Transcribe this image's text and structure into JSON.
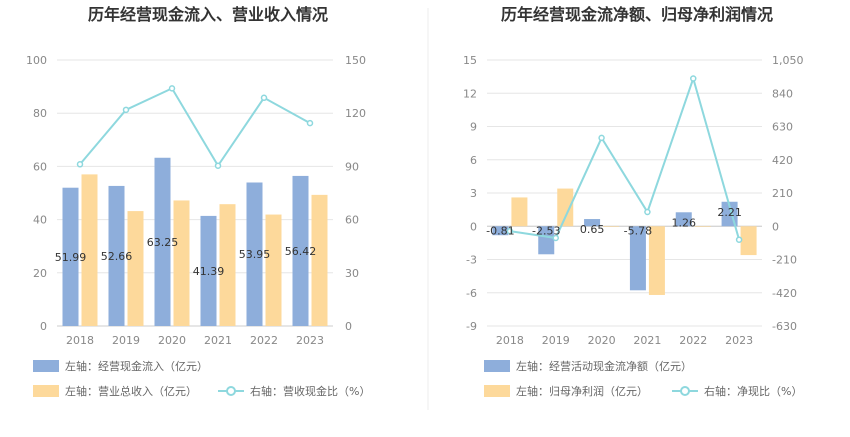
{
  "chart_data": [
    {
      "type": "bar",
      "title": "历年经营现金流入、营业收入情况",
      "categories": [
        "2018",
        "2019",
        "2020",
        "2021",
        "2022",
        "2023"
      ],
      "left_axis": {
        "min": 0,
        "max": 100,
        "ticks": [
          "0",
          "20",
          "40",
          "60",
          "80",
          "100"
        ]
      },
      "right_axis": {
        "min": 0,
        "max": 150,
        "ticks": [
          "0",
          "30",
          "60",
          "90",
          "120",
          "150"
        ]
      },
      "series": [
        {
          "name": "左轴：经营现金流入（亿元）",
          "type": "bar",
          "axis": "left",
          "color": "#8eaedb",
          "values": [
            51.99,
            52.66,
            63.25,
            41.39,
            53.95,
            56.42
          ],
          "labels": [
            "51.99",
            "52.66",
            "63.25",
            "41.39",
            "53.95",
            "56.42"
          ]
        },
        {
          "name": "左轴：营业总收入（亿元）",
          "type": "bar",
          "axis": "left",
          "color": "#fdd99b",
          "values": [
            57,
            43.2,
            47.2,
            45.8,
            41.9,
            49.3
          ]
        },
        {
          "name": "右轴：营收现金比（%）",
          "type": "line",
          "axis": "right",
          "color": "#8ed8de",
          "values": [
            91.2,
            121.9,
            134,
            90.4,
            128.7,
            114.4
          ]
        }
      ],
      "grid": true,
      "legend": "bottom"
    },
    {
      "type": "bar",
      "title": "历年经营现金流净额、归母净利润情况",
      "categories": [
        "2018",
        "2019",
        "2020",
        "2021",
        "2022",
        "2023"
      ],
      "left_axis": {
        "min": -9,
        "max": 15,
        "ticks": [
          "-9",
          "-6",
          "-3",
          "0",
          "3",
          "6",
          "9",
          "12",
          "15"
        ]
      },
      "right_axis": {
        "min": -630,
        "max": 1050,
        "ticks": [
          "-630",
          "-420",
          "-210",
          "0",
          "210",
          "420",
          "630",
          "840",
          "1,050"
        ]
      },
      "series": [
        {
          "name": "左轴：经营活动现金流净额（亿元）",
          "type": "bar",
          "axis": "left",
          "color": "#8eaedb",
          "values": [
            -0.81,
            -2.53,
            0.65,
            -5.78,
            1.26,
            2.21
          ],
          "labels": [
            "-0.81",
            "-2.53",
            "0.65",
            "-5.78",
            "1.26",
            "2.21"
          ]
        },
        {
          "name": "左轴：归母净利润（亿元）",
          "type": "bar",
          "axis": "left",
          "color": "#fdd99b",
          "values": [
            2.6,
            3.4,
            -0.05,
            -6.2,
            0,
            -2.6
          ]
        },
        {
          "name": "右轴：净现比（%）",
          "type": "line",
          "axis": "right",
          "color": "#8ed8de",
          "values": [
            -31,
            -74,
            558,
            90,
            933,
            -85
          ]
        }
      ],
      "grid": true,
      "legend": "bottom"
    }
  ]
}
